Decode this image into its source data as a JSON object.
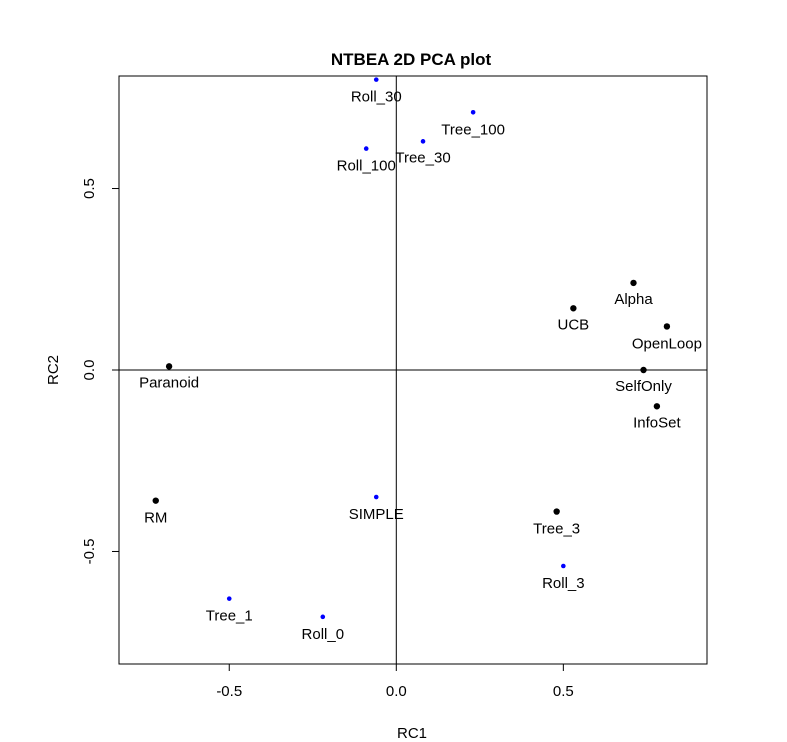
{
  "chart_data": {
    "type": "scatter",
    "title": "NTBEA 2D PCA plot",
    "xlabel": "RC1",
    "ylabel": "RC2",
    "xlim": [
      -0.83,
      0.93
    ],
    "ylim": [
      -0.81,
      0.81
    ],
    "x_ticks": [
      {
        "value": -0.5,
        "label": "-0.5"
      },
      {
        "value": 0.0,
        "label": "0.0"
      },
      {
        "value": 0.5,
        "label": "0.5"
      }
    ],
    "y_ticks": [
      {
        "value": -0.5,
        "label": "-0.5"
      },
      {
        "value": 0.0,
        "label": "0.0"
      },
      {
        "value": 0.5,
        "label": "0.5"
      }
    ],
    "reference_lines": {
      "x": 0.0,
      "y": 0.0
    },
    "colors": {
      "axis": "#000000",
      "black_series": "#000000",
      "blue_series": "#0000ff"
    },
    "series": [
      {
        "name": "black points",
        "color": "#000000",
        "points": [
          {
            "label": "Paranoid",
            "x": -0.68,
            "y": 0.01
          },
          {
            "label": "RM",
            "x": -0.72,
            "y": -0.36
          },
          {
            "label": "UCB",
            "x": 0.53,
            "y": 0.17
          },
          {
            "label": "Alpha",
            "x": 0.71,
            "y": 0.24
          },
          {
            "label": "OpenLoop",
            "x": 0.81,
            "y": 0.12
          },
          {
            "label": "SelfOnly",
            "x": 0.74,
            "y": 0.0
          },
          {
            "label": "InfoSet",
            "x": 0.78,
            "y": -0.1
          },
          {
            "label": "Tree_3",
            "x": 0.48,
            "y": -0.39
          }
        ]
      },
      {
        "name": "blue points",
        "color": "#0000ff",
        "points": [
          {
            "label": "Roll_30",
            "x": -0.06,
            "y": 0.8
          },
          {
            "label": "Tree_100",
            "x": 0.23,
            "y": 0.71
          },
          {
            "label": "Tree_30",
            "x": 0.08,
            "y": 0.63
          },
          {
            "label": "Roll_100",
            "x": -0.09,
            "y": 0.61
          },
          {
            "label": "SIMPLE",
            "x": -0.06,
            "y": -0.35
          },
          {
            "label": "Roll_3",
            "x": 0.5,
            "y": -0.54
          },
          {
            "label": "Tree_1",
            "x": -0.5,
            "y": -0.63
          },
          {
            "label": "Roll_0",
            "x": -0.22,
            "y": -0.68
          }
        ]
      }
    ]
  }
}
